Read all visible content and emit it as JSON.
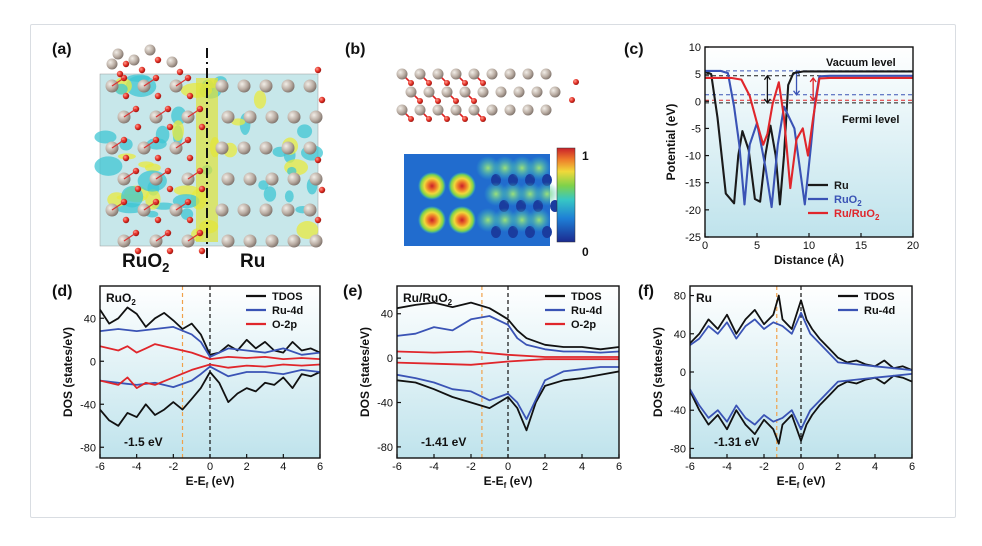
{
  "panels": {
    "a": {
      "letter": "(a)",
      "left_label": "RuO",
      "left_label_sub": "2",
      "right_label": "Ru"
    },
    "b": {
      "letter": "(b)",
      "colorbar_max": "1",
      "colorbar_min": "0"
    },
    "c": {
      "letter": "(c)",
      "annotation_top": "Vacuum level",
      "annotation_bottom": "Fermi level"
    },
    "d": {
      "letter": "(d)",
      "inner_label": "RuO",
      "inner_sub": "2",
      "dband": "-1.5 eV"
    },
    "e": {
      "letter": "(e)",
      "inner_label": "Ru/RuO",
      "inner_sub": "2",
      "dband": "-1.41 eV"
    },
    "f": {
      "letter": "(f)",
      "inner_label": "Ru",
      "inner_sub": "",
      "dband": "-1.31 eV"
    }
  },
  "colors": {
    "ru": "#1a1a1a",
    "ruo2": "#3a53b5",
    "ru_ruo2": "#e0262b",
    "o2p": "#e0262b",
    "tdos": "#111111",
    "ru4d": "#3a53b5",
    "panel_bg_top": "#ffffff",
    "panel_bg_bottom": "#bfe3ec",
    "dband_line": "#f0a14a",
    "fermi_line": "#111111"
  },
  "chart_data": [
    {
      "id": "c",
      "type": "line",
      "xlabel": "Distance (Å)",
      "ylabel": "Potential (eV)",
      "xlim": [
        0,
        20
      ],
      "ylim": [
        -25,
        10
      ],
      "xticks": [
        0,
        5,
        10,
        15,
        20
      ],
      "yticks": [
        -25,
        -20,
        -15,
        -10,
        -5,
        0,
        5,
        10
      ],
      "legend": [
        "Ru",
        "RuO2",
        "Ru/RuO2"
      ],
      "legend_position": "bottom-right",
      "series": [
        {
          "name": "Ru",
          "color_key": "ru",
          "x": [
            0,
            0.6,
            1.2,
            2.0,
            2.8,
            3.2,
            3.6,
            4.2,
            4.8,
            5.3,
            5.8,
            6.3,
            6.8,
            7.2,
            7.6,
            8.0,
            8.5,
            9.5,
            12,
            15,
            20
          ],
          "y": [
            5.5,
            5.0,
            -3,
            -17,
            -18.8,
            -10,
            -5.5,
            -9,
            -18,
            -18.5,
            -10,
            -4.5,
            -10,
            -19,
            -10,
            3,
            5.2,
            5.5,
            5.5,
            5.5,
            5.5
          ]
        },
        {
          "name": "RuO2",
          "color_key": "ruo2",
          "x": [
            0,
            1.5,
            2.2,
            2.8,
            3.3,
            3.8,
            4.3,
            5.0,
            5.8,
            6.4,
            7.0,
            7.6,
            8.1,
            8.6,
            9.1,
            9.6,
            10.2,
            10.6,
            11.0,
            12,
            15,
            20
          ],
          "y": [
            5.6,
            5.6,
            5.2,
            -1,
            -8,
            -19,
            -8,
            -4,
            -12,
            -19.5,
            -8,
            -1,
            -3,
            -5,
            -12,
            -19,
            -8,
            0,
            4.6,
            4.7,
            4.7,
            4.7
          ]
        },
        {
          "name": "Ru/RuO2",
          "color_key": "ru_ruo2",
          "x": [
            0,
            2.5,
            3.5,
            4.3,
            5.0,
            5.6,
            6.0,
            6.5,
            7.1,
            7.6,
            8.2,
            8.8,
            9.4,
            9.9,
            10.4,
            11.0,
            12,
            15,
            20
          ],
          "y": [
            4.3,
            4.3,
            4.0,
            1,
            -4,
            -8,
            -6,
            -0.5,
            3.5,
            -3,
            -16,
            -7,
            -5,
            -10,
            -3,
            4.2,
            4.3,
            4.3,
            4.3
          ]
        }
      ],
      "reference_lines": [
        {
          "y": 5.6,
          "style": "dash",
          "color_key": "ruo2"
        },
        {
          "y": 4.7,
          "style": "dash",
          "color_key": "ru"
        },
        {
          "y": 0.2,
          "style": "dash",
          "color_key": "ru_ruo2"
        },
        {
          "y": -0.3,
          "style": "dash",
          "color_key": "ru"
        },
        {
          "y": 1.2,
          "style": "dash",
          "color_key": "ruo2"
        }
      ]
    },
    {
      "id": "d",
      "type": "line",
      "xlabel": "E-E_f (eV)",
      "ylabel": "DOS (states/eV)",
      "xlim": [
        -6,
        6
      ],
      "ylim": [
        -90,
        70
      ],
      "xticks": [
        -6,
        -4,
        -2,
        0,
        2,
        4,
        6
      ],
      "yticks": [
        -80,
        -40,
        0,
        40
      ],
      "legend": [
        "TDOS",
        "Ru-4d",
        "O-2p"
      ],
      "legend_position": "top-right",
      "dband_center": -1.5,
      "series": [
        {
          "name": "TDOS",
          "color_key": "tdos",
          "x": [
            -6,
            -5.5,
            -5,
            -4.5,
            -4,
            -3.5,
            -3,
            -2.5,
            -2,
            -1.5,
            -1,
            -0.5,
            0,
            0.5,
            1,
            1.5,
            2,
            2.5,
            3,
            3.5,
            4,
            4.5,
            5,
            5.5,
            6
          ],
          "y": [
            48,
            35,
            40,
            50,
            44,
            32,
            40,
            45,
            38,
            30,
            35,
            25,
            6,
            8,
            15,
            10,
            20,
            12,
            18,
            10,
            8,
            18,
            10,
            12,
            8
          ]
        },
        {
          "name": "TDOS-down",
          "color_key": "tdos",
          "x": [
            -6,
            -5.5,
            -5,
            -4.5,
            -4,
            -3.5,
            -3,
            -2.5,
            -2,
            -1.5,
            -1,
            -0.5,
            0,
            0.5,
            1,
            1.5,
            2,
            2.5,
            3,
            3.5,
            4,
            4.5,
            5,
            5.5,
            6
          ],
          "y": [
            -45,
            -55,
            -60,
            -48,
            -52,
            -40,
            -50,
            -45,
            -38,
            -45,
            -35,
            -25,
            -10,
            -20,
            -38,
            -30,
            -25,
            -28,
            -20,
            -22,
            -15,
            -25,
            -12,
            -14,
            -10
          ]
        },
        {
          "name": "Ru-4d",
          "color_key": "ru4d",
          "x": [
            -6,
            -5,
            -4,
            -3,
            -2,
            -1,
            -0.5,
            0,
            1,
            2,
            3,
            4,
            5,
            6
          ],
          "y": [
            28,
            30,
            28,
            30,
            32,
            25,
            18,
            4,
            12,
            10,
            8,
            12,
            6,
            8
          ]
        },
        {
          "name": "Ru-4d-down",
          "color_key": "ru4d",
          "x": [
            -6,
            -5,
            -4,
            -3,
            -2,
            -1,
            -0.5,
            0,
            1,
            2,
            3,
            4,
            5,
            6
          ],
          "y": [
            -18,
            -20,
            -22,
            -20,
            -24,
            -18,
            -12,
            -5,
            -14,
            -10,
            -10,
            -12,
            -8,
            -10
          ]
        },
        {
          "name": "O-2p",
          "color_key": "o2p",
          "x": [
            -6,
            -5,
            -4.5,
            -4,
            -3.5,
            -3,
            -2,
            -1,
            0,
            1,
            2,
            3,
            4,
            5,
            6
          ],
          "y": [
            14,
            10,
            14,
            8,
            12,
            16,
            12,
            8,
            2,
            4,
            3,
            4,
            2,
            3,
            2
          ]
        },
        {
          "name": "O-2p-down",
          "color_key": "o2p",
          "x": [
            -6,
            -5,
            -4.5,
            -4,
            -3.5,
            -3,
            -2,
            -1,
            0,
            1,
            2,
            3,
            4,
            5,
            6
          ],
          "y": [
            -18,
            -22,
            -15,
            -25,
            -20,
            -22,
            -15,
            -8,
            -3,
            -6,
            -4,
            -5,
            -3,
            -4,
            -3
          ]
        }
      ]
    },
    {
      "id": "e",
      "type": "line",
      "xlabel": "E-E_f (eV)",
      "ylabel": "DOS (states/eV)",
      "xlim": [
        -6,
        6
      ],
      "ylim": [
        -90,
        65
      ],
      "xticks": [
        -6,
        -4,
        -2,
        0,
        2,
        4,
        6
      ],
      "yticks": [
        -80,
        -40,
        0,
        40
      ],
      "legend": [
        "TDOS",
        "Ru-4d",
        "O-2p"
      ],
      "legend_position": "top-right",
      "dband_center": -1.41,
      "series": [
        {
          "name": "TDOS",
          "color_key": "tdos",
          "x": [
            -6,
            -5,
            -4,
            -3,
            -2,
            -1,
            -0.5,
            0,
            0.5,
            1,
            2,
            3,
            4,
            5,
            6
          ],
          "y": [
            45,
            48,
            50,
            46,
            50,
            45,
            40,
            35,
            25,
            18,
            12,
            10,
            10,
            8,
            10
          ]
        },
        {
          "name": "TDOS-down",
          "color_key": "tdos",
          "x": [
            -6,
            -5,
            -4,
            -3,
            -2,
            -1,
            -0.5,
            0,
            0.5,
            1,
            1.5,
            2,
            3,
            4,
            5,
            6
          ],
          "y": [
            -20,
            -22,
            -28,
            -35,
            -40,
            -45,
            -40,
            -35,
            -45,
            -65,
            -40,
            -25,
            -20,
            -18,
            -15,
            -12
          ]
        },
        {
          "name": "Ru-4d",
          "color_key": "ru4d",
          "x": [
            -6,
            -5,
            -4,
            -3,
            -2,
            -1,
            0,
            0.5,
            1,
            2,
            3,
            4,
            5,
            6
          ],
          "y": [
            20,
            22,
            28,
            25,
            35,
            38,
            30,
            18,
            12,
            8,
            6,
            6,
            5,
            6
          ]
        },
        {
          "name": "Ru-4d-down",
          "color_key": "ru4d",
          "x": [
            -6,
            -5,
            -4,
            -3,
            -2,
            -1,
            0,
            0.5,
            1,
            2,
            3,
            4,
            5,
            6
          ],
          "y": [
            -15,
            -18,
            -22,
            -28,
            -30,
            -38,
            -32,
            -40,
            -55,
            -20,
            -12,
            -10,
            -8,
            -8
          ]
        },
        {
          "name": "O-2p",
          "color_key": "o2p",
          "x": [
            -6,
            -4,
            -2,
            0,
            2,
            4,
            6
          ],
          "y": [
            6,
            5,
            6,
            3,
            1,
            1,
            1
          ]
        },
        {
          "name": "O-2p-down",
          "color_key": "o2p",
          "x": [
            -6,
            -4,
            -2,
            0,
            2,
            4,
            6
          ],
          "y": [
            -4,
            -5,
            -6,
            -3,
            -1,
            -1,
            -1
          ]
        }
      ]
    },
    {
      "id": "f",
      "type": "line",
      "xlabel": "E-E_f (eV)",
      "ylabel": "DOS (states/eV)",
      "xlim": [
        -6,
        6
      ],
      "ylim": [
        -90,
        90
      ],
      "xticks": [
        -6,
        -4,
        -2,
        0,
        2,
        4,
        6
      ],
      "yticks": [
        -80,
        -40,
        0,
        40,
        80
      ],
      "legend": [
        "TDOS",
        "Ru-4d"
      ],
      "legend_position": "top-right",
      "dband_center": -1.31,
      "series": [
        {
          "name": "TDOS",
          "color_key": "tdos",
          "x": [
            -6,
            -5.5,
            -5,
            -4.5,
            -4,
            -3.5,
            -3,
            -2.5,
            -2,
            -1.5,
            -1.2,
            -1,
            -0.5,
            0,
            0.3,
            0.6,
            1,
            1.5,
            2,
            2.5,
            3,
            3.5,
            4,
            4.5,
            5,
            5.5,
            6
          ],
          "y": [
            30,
            40,
            55,
            45,
            60,
            40,
            55,
            65,
            50,
            60,
            80,
            55,
            45,
            75,
            55,
            45,
            35,
            25,
            15,
            10,
            12,
            8,
            6,
            12,
            4,
            6,
            2
          ]
        },
        {
          "name": "TDOS-down",
          "color_key": "tdos",
          "x": [
            -6,
            -5.5,
            -5,
            -4.5,
            -4,
            -3.5,
            -3,
            -2.5,
            -2,
            -1.5,
            -1.2,
            -1,
            -0.5,
            0,
            0.3,
            0.6,
            1,
            1.5,
            2,
            2.5,
            3,
            3.5,
            4,
            4.5,
            5,
            5.5,
            6
          ],
          "y": [
            -20,
            -40,
            -55,
            -45,
            -60,
            -40,
            -55,
            -65,
            -50,
            -60,
            -75,
            -55,
            -45,
            -72,
            -55,
            -45,
            -35,
            -25,
            -15,
            -10,
            -12,
            -8,
            -6,
            -12,
            -4,
            -6,
            -10
          ]
        },
        {
          "name": "Ru-4d",
          "color_key": "ru4d",
          "x": [
            -6,
            -5.5,
            -5,
            -4.5,
            -4,
            -3.5,
            -3,
            -2.5,
            -2,
            -1.5,
            -1,
            -0.5,
            0,
            0.5,
            1,
            1.5,
            2,
            3,
            4,
            5,
            6
          ],
          "y": [
            28,
            35,
            48,
            40,
            52,
            35,
            48,
            55,
            45,
            52,
            48,
            40,
            62,
            40,
            30,
            20,
            10,
            8,
            6,
            4,
            2
          ]
        },
        {
          "name": "Ru-4d-down",
          "color_key": "ru4d",
          "x": [
            -6,
            -5.5,
            -5,
            -4.5,
            -4,
            -3.5,
            -3,
            -2.5,
            -2,
            -1.5,
            -1,
            -0.5,
            0,
            0.5,
            1,
            1.5,
            2,
            3,
            4,
            5,
            6
          ],
          "y": [
            -18,
            -35,
            -48,
            -40,
            -52,
            -35,
            -48,
            -55,
            -45,
            -52,
            -48,
            -40,
            -60,
            -40,
            -30,
            -20,
            -10,
            -8,
            -6,
            -4,
            -2
          ]
        }
      ]
    }
  ]
}
